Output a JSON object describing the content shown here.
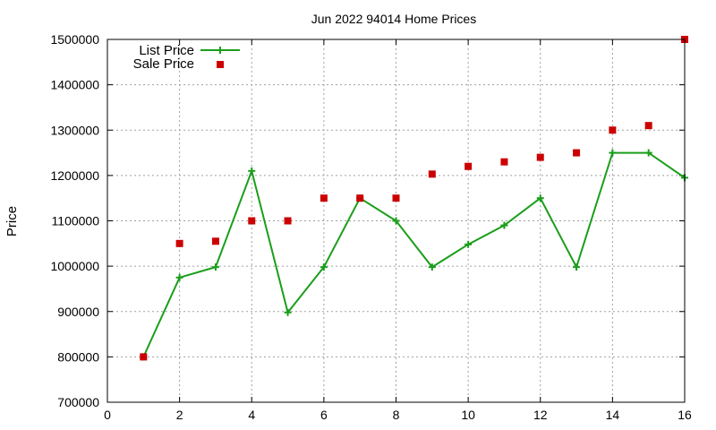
{
  "chart_data": {
    "type": "line",
    "title": "Jun 2022 94014 Home Prices",
    "xlabel": "",
    "ylabel": "Price",
    "xlim": [
      0,
      16
    ],
    "ylim": [
      700000,
      1500000
    ],
    "xticks": [
      0,
      2,
      4,
      6,
      8,
      10,
      12,
      14,
      16
    ],
    "yticks": [
      700000,
      800000,
      900000,
      1000000,
      1100000,
      1200000,
      1300000,
      1400000,
      1500000
    ],
    "grid": true,
    "legend_position": "top-left",
    "series": [
      {
        "name": "List Price",
        "style": "line-with-plus-markers",
        "color": "#1a9e1a",
        "x": [
          1,
          2,
          3,
          4,
          5,
          6,
          7,
          8,
          9,
          10,
          11,
          12,
          13,
          14,
          15,
          16
        ],
        "values": [
          800000,
          975000,
          998000,
          1210000,
          898000,
          998000,
          1150000,
          1100000,
          998000,
          1048000,
          1090000,
          1150000,
          998000,
          1250000,
          1250000,
          1195000
        ]
      },
      {
        "name": "Sale Price",
        "style": "square-markers",
        "color": "#cc0000",
        "x": [
          1,
          2,
          3,
          4,
          5,
          6,
          7,
          8,
          9,
          10,
          11,
          12,
          13,
          14,
          15,
          16
        ],
        "values": [
          800000,
          1050000,
          1055000,
          1100000,
          1100000,
          1150000,
          1150000,
          1150000,
          1203000,
          1220000,
          1230000,
          1240000,
          1250000,
          1300000,
          1310000,
          1500000
        ]
      }
    ]
  }
}
